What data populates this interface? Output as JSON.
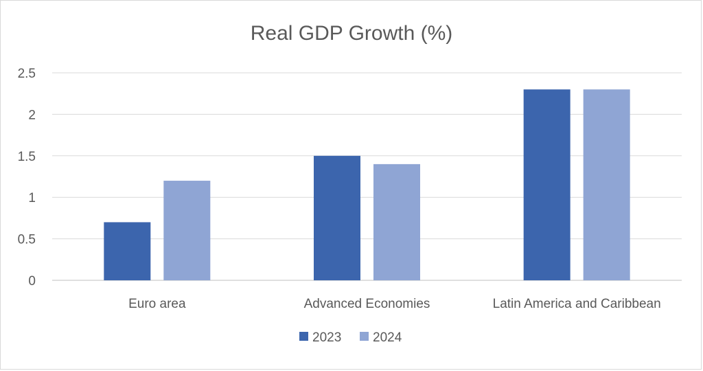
{
  "chart_data": {
    "type": "bar",
    "title": "Real GDP Growth (%)",
    "categories": [
      "Euro area",
      "Advanced Economies",
      "Latin America and Caribbean"
    ],
    "series": [
      {
        "name": "2023",
        "values": [
          0.7,
          1.5,
          2.3
        ],
        "color": "#3c65ad"
      },
      {
        "name": "2024",
        "values": [
          1.2,
          1.4,
          2.3
        ],
        "color": "#8fa5d4"
      }
    ],
    "y_ticks": [
      "0",
      "0.5",
      "1",
      "1.5",
      "2",
      "2.5"
    ],
    "ylim": [
      0,
      2.5
    ],
    "grid": true,
    "legend_position": "bottom",
    "xlabel": "",
    "ylabel": ""
  }
}
